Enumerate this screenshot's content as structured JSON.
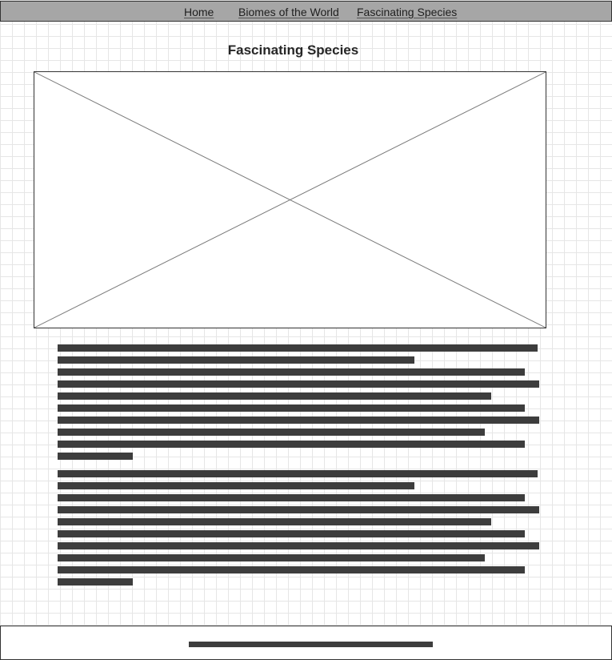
{
  "nav": {
    "items": [
      {
        "label": "Home"
      },
      {
        "label": "Biomes of the World"
      },
      {
        "label": "Fascinating Species"
      }
    ]
  },
  "main": {
    "title": "Fascinating Species",
    "image": {
      "icon": "image-placeholder-icon"
    },
    "paragraphs": [
      {
        "line_count": 10
      },
      {
        "line_count": 10
      }
    ]
  },
  "footer": {
    "text_placeholder": {
      "line_count": 1
    }
  }
}
